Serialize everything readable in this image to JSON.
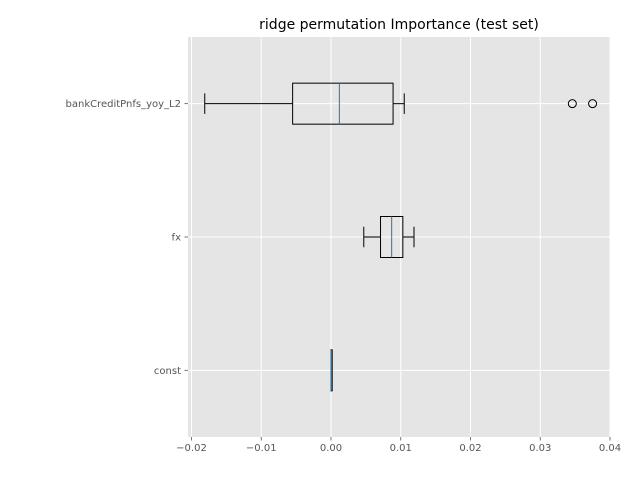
{
  "chart_data": {
    "type": "boxplot",
    "orientation": "horizontal",
    "title": "ridge permutation Importance (test set)",
    "xlabel": "",
    "ylabel": "",
    "xlim": [
      -0.0205,
      0.04
    ],
    "xticks": [
      -0.02,
      -0.01,
      0.0,
      0.01,
      0.02,
      0.03,
      0.04
    ],
    "xtick_labels": [
      "−0.02",
      "−0.01",
      "0.00",
      "0.01",
      "0.02",
      "0.03",
      "0.04"
    ],
    "grid": true,
    "categories": [
      "bankCreditPnfs_yoy_L2",
      "fx",
      "const"
    ],
    "boxes": [
      {
        "label": "bankCreditPnfs_yoy_L2",
        "whisker_low": -0.0181,
        "q1": -0.0055,
        "median": 0.0012,
        "q3": 0.0089,
        "whisker_high": 0.0105,
        "outliers": [
          0.0346,
          0.0375
        ]
      },
      {
        "label": "fx",
        "whisker_low": 0.0047,
        "q1": 0.0071,
        "median": 0.0087,
        "q3": 0.0103,
        "whisker_high": 0.0119,
        "outliers": []
      },
      {
        "label": "const",
        "whisker_low": 0.0,
        "q1": 0.0,
        "median": 0.0,
        "q3": 0.0,
        "whisker_high": 0.0,
        "outliers": []
      }
    ],
    "colors": {
      "background": "#e5e5e5",
      "grid": "#ffffff",
      "box": "#000000",
      "median": "#1f77b4"
    }
  }
}
